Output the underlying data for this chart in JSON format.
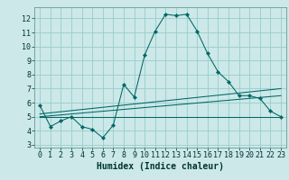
{
  "bg_color": "#cce8e8",
  "grid_color": "#99cccc",
  "line_color": "#006666",
  "xlabel": "Humidex (Indice chaleur)",
  "xlabel_fontsize": 7,
  "tick_fontsize": 6,
  "xlim": [
    -0.5,
    23.5
  ],
  "ylim": [
    2.8,
    12.8
  ],
  "yticks": [
    3,
    4,
    5,
    6,
    7,
    8,
    9,
    10,
    11,
    12
  ],
  "xticks": [
    0,
    1,
    2,
    3,
    4,
    5,
    6,
    7,
    8,
    9,
    10,
    11,
    12,
    13,
    14,
    15,
    16,
    17,
    18,
    19,
    20,
    21,
    22,
    23
  ],
  "main_line_x": [
    0,
    1,
    2,
    3,
    4,
    5,
    6,
    7,
    8,
    9,
    10,
    11,
    12,
    13,
    14,
    15,
    16,
    17,
    18,
    19,
    20,
    21,
    22,
    23
  ],
  "main_line_y": [
    5.8,
    4.3,
    4.7,
    5.0,
    4.3,
    4.1,
    3.5,
    4.4,
    7.3,
    6.4,
    9.4,
    11.1,
    12.3,
    12.2,
    12.3,
    11.1,
    9.5,
    8.2,
    7.5,
    6.5,
    6.5,
    6.3,
    5.4,
    5.0
  ],
  "line2_x": [
    0,
    23
  ],
  "line2_y": [
    5.0,
    5.0
  ],
  "line3_x": [
    0,
    23
  ],
  "line3_y": [
    5.0,
    6.5
  ],
  "line4_x": [
    0,
    23
  ],
  "line4_y": [
    5.2,
    7.0
  ]
}
